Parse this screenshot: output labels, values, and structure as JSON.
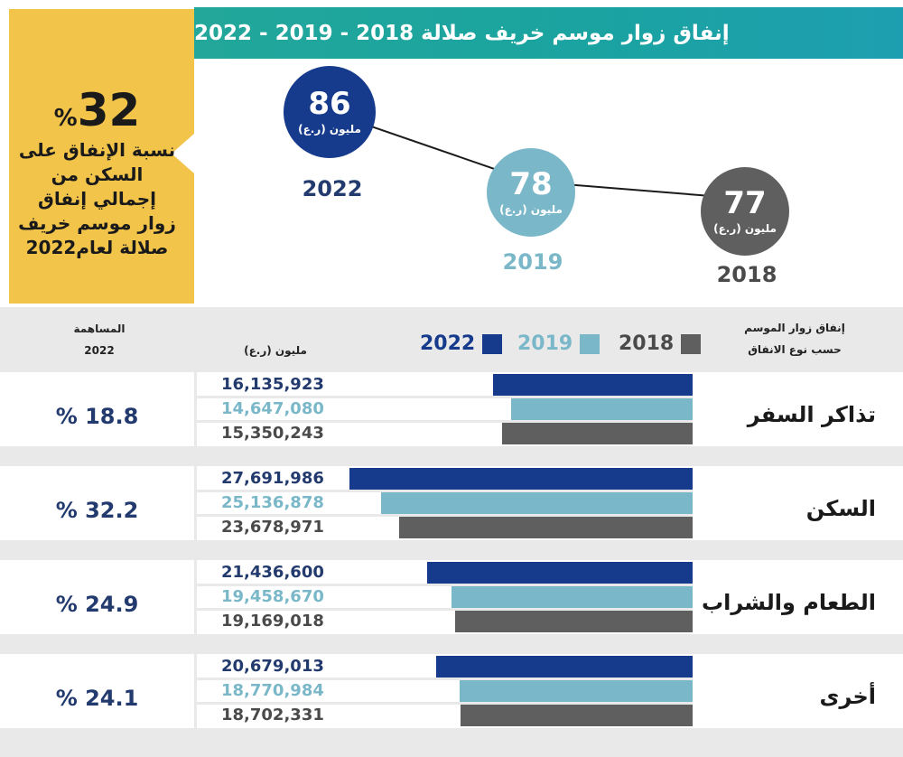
{
  "header": {
    "title": "إنفاق زوار موسم خريف صلالة 2018 - 2019 - 2022"
  },
  "callout": {
    "value": "32",
    "percent_sign": "%",
    "description": "نسبة الإنفاق على السكن من إجمالي إنفاق زوار موسم خريف صلالة لعام2022"
  },
  "colors": {
    "y2022": "#163b8c",
    "y2019": "#7ab8c9",
    "y2018": "#5f5f60",
    "callout": "#f2c44a",
    "teal": "#1fa4a5"
  },
  "timeline": [
    {
      "year": "2022",
      "value": "86",
      "unit": "مليون (ر.ع)",
      "amount": 86
    },
    {
      "year": "2019",
      "value": "78",
      "unit": "مليون (ر.ع)",
      "amount": 78
    },
    {
      "year": "2018",
      "value": "77",
      "unit": "مليون (ر.ع)",
      "amount": 77
    }
  ],
  "table_header": {
    "contribution_title": "المساهمة",
    "contribution_year": "2022",
    "unit": "مليون (ر.ع)",
    "category_title_line1": "إنفاق زوار الموسم",
    "category_title_line2": "حسب نوع الانفاق"
  },
  "legend": [
    {
      "label": "2022",
      "color": "#163b8c"
    },
    {
      "label": "2019",
      "color": "#7ab8c9"
    },
    {
      "label": "2018",
      "color": "#5f5f60"
    }
  ],
  "chart_data": {
    "type": "bar",
    "orientation": "horizontal",
    "categories": [
      "تذاكر السفر",
      "السكن",
      "الطعام والشراب",
      "أخرى"
    ],
    "series": [
      {
        "name": "2022",
        "values": [
          16135923,
          27691986,
          21436600,
          20679013
        ],
        "labels": [
          "16,135,923",
          "27,691,986",
          "21,436,600",
          "20,679,013"
        ]
      },
      {
        "name": "2019",
        "values": [
          14647080,
          25136878,
          19458670,
          18770984
        ],
        "labels": [
          "14,647,080",
          "25,136,878",
          "19,458,670",
          "18,770,984"
        ]
      },
      {
        "name": "2018",
        "values": [
          15350243,
          23678971,
          19169018,
          18702331
        ],
        "labels": [
          "15,350,243",
          "23,678,971",
          "19,169,018",
          "18,702,331"
        ]
      }
    ],
    "contribution_2022": [
      "% 18.8",
      "% 32.2",
      "% 24.9",
      "% 24.1"
    ],
    "xlim": [
      0,
      40000000
    ],
    "legend": "top"
  }
}
